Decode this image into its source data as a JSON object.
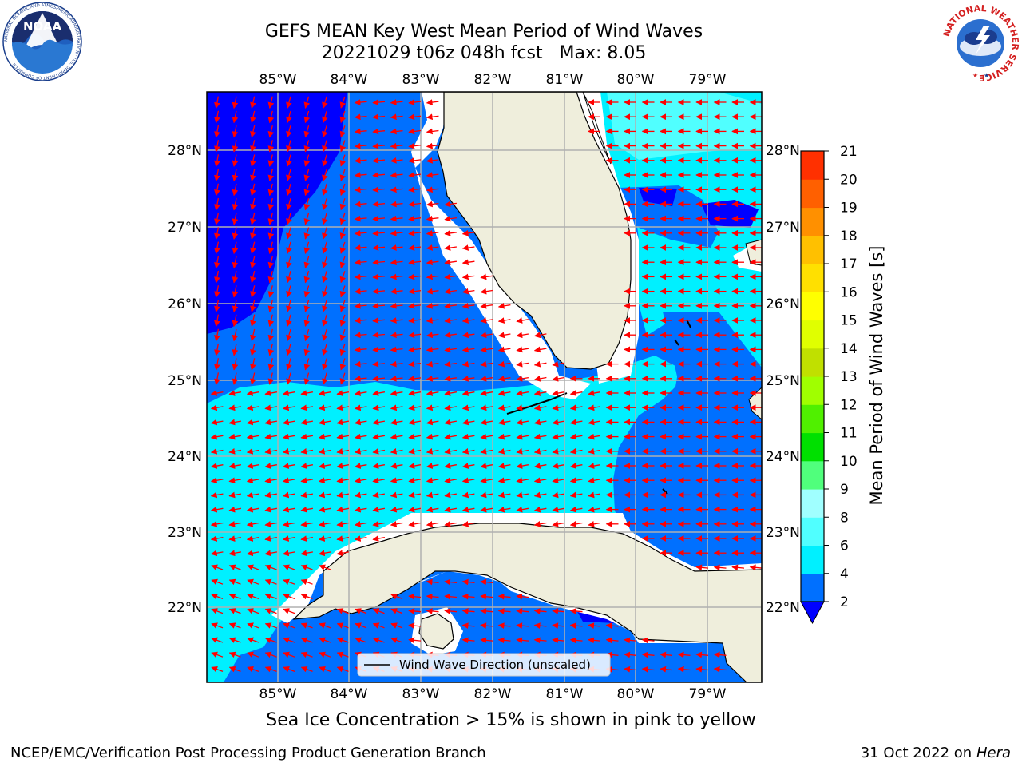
{
  "title": {
    "line1": "GEFS MEAN Key West Mean Period of Wind Waves",
    "line2": "20221029 t06z 048h fcst   Max: 8.05"
  },
  "map": {
    "lon_ticks": [
      "85°W",
      "84°W",
      "83°W",
      "82°W",
      "81°W",
      "80°W",
      "79°W"
    ],
    "lat_ticks": [
      "28°N",
      "27°N",
      "26°N",
      "25°N",
      "24°N",
      "23°N",
      "22°N"
    ],
    "legend_label": "Wind Wave Direction (unscaled)",
    "arrow_color": "#ff0000",
    "land_color": "#efeedc"
  },
  "colorbar": {
    "label": "Mean Period of Wind Waves [s]",
    "ticks": [
      "2",
      "4",
      "6",
      "8",
      "9",
      "10",
      "11",
      "12",
      "13",
      "14",
      "15",
      "16",
      "17",
      "18",
      "19",
      "20",
      "21"
    ],
    "colors": [
      "#0070ff",
      "#00f0ff",
      "#50ffff",
      "#a0ffff",
      "#50ff7c",
      "#00e000",
      "#50f000",
      "#a0ff00",
      "#c0e000",
      "#e0ff00",
      "#ffff00",
      "#ffe000",
      "#ffc000",
      "#ff9000",
      "#ff6000",
      "#ff3000",
      "#ff0000"
    ],
    "under_color": "#0000ff"
  },
  "logos": {
    "noaa_text": "NOAA",
    "noaa_ring": "NATIONAL OCEANIC AND ATMOSPHERIC ADMINISTRATION · U.S. DEPARTMENT OF COMMERCE",
    "nws_ring": "NATIONAL WEATHER SERVICE"
  },
  "notes": {
    "sea_ice": "Sea Ice Concentration > 15% is shown in pink to yellow",
    "footer_left": "NCEP/EMC/Verification Post Processing Product Generation Branch",
    "footer_date": "31 Oct 2022 on ",
    "footer_host": "Hera"
  }
}
